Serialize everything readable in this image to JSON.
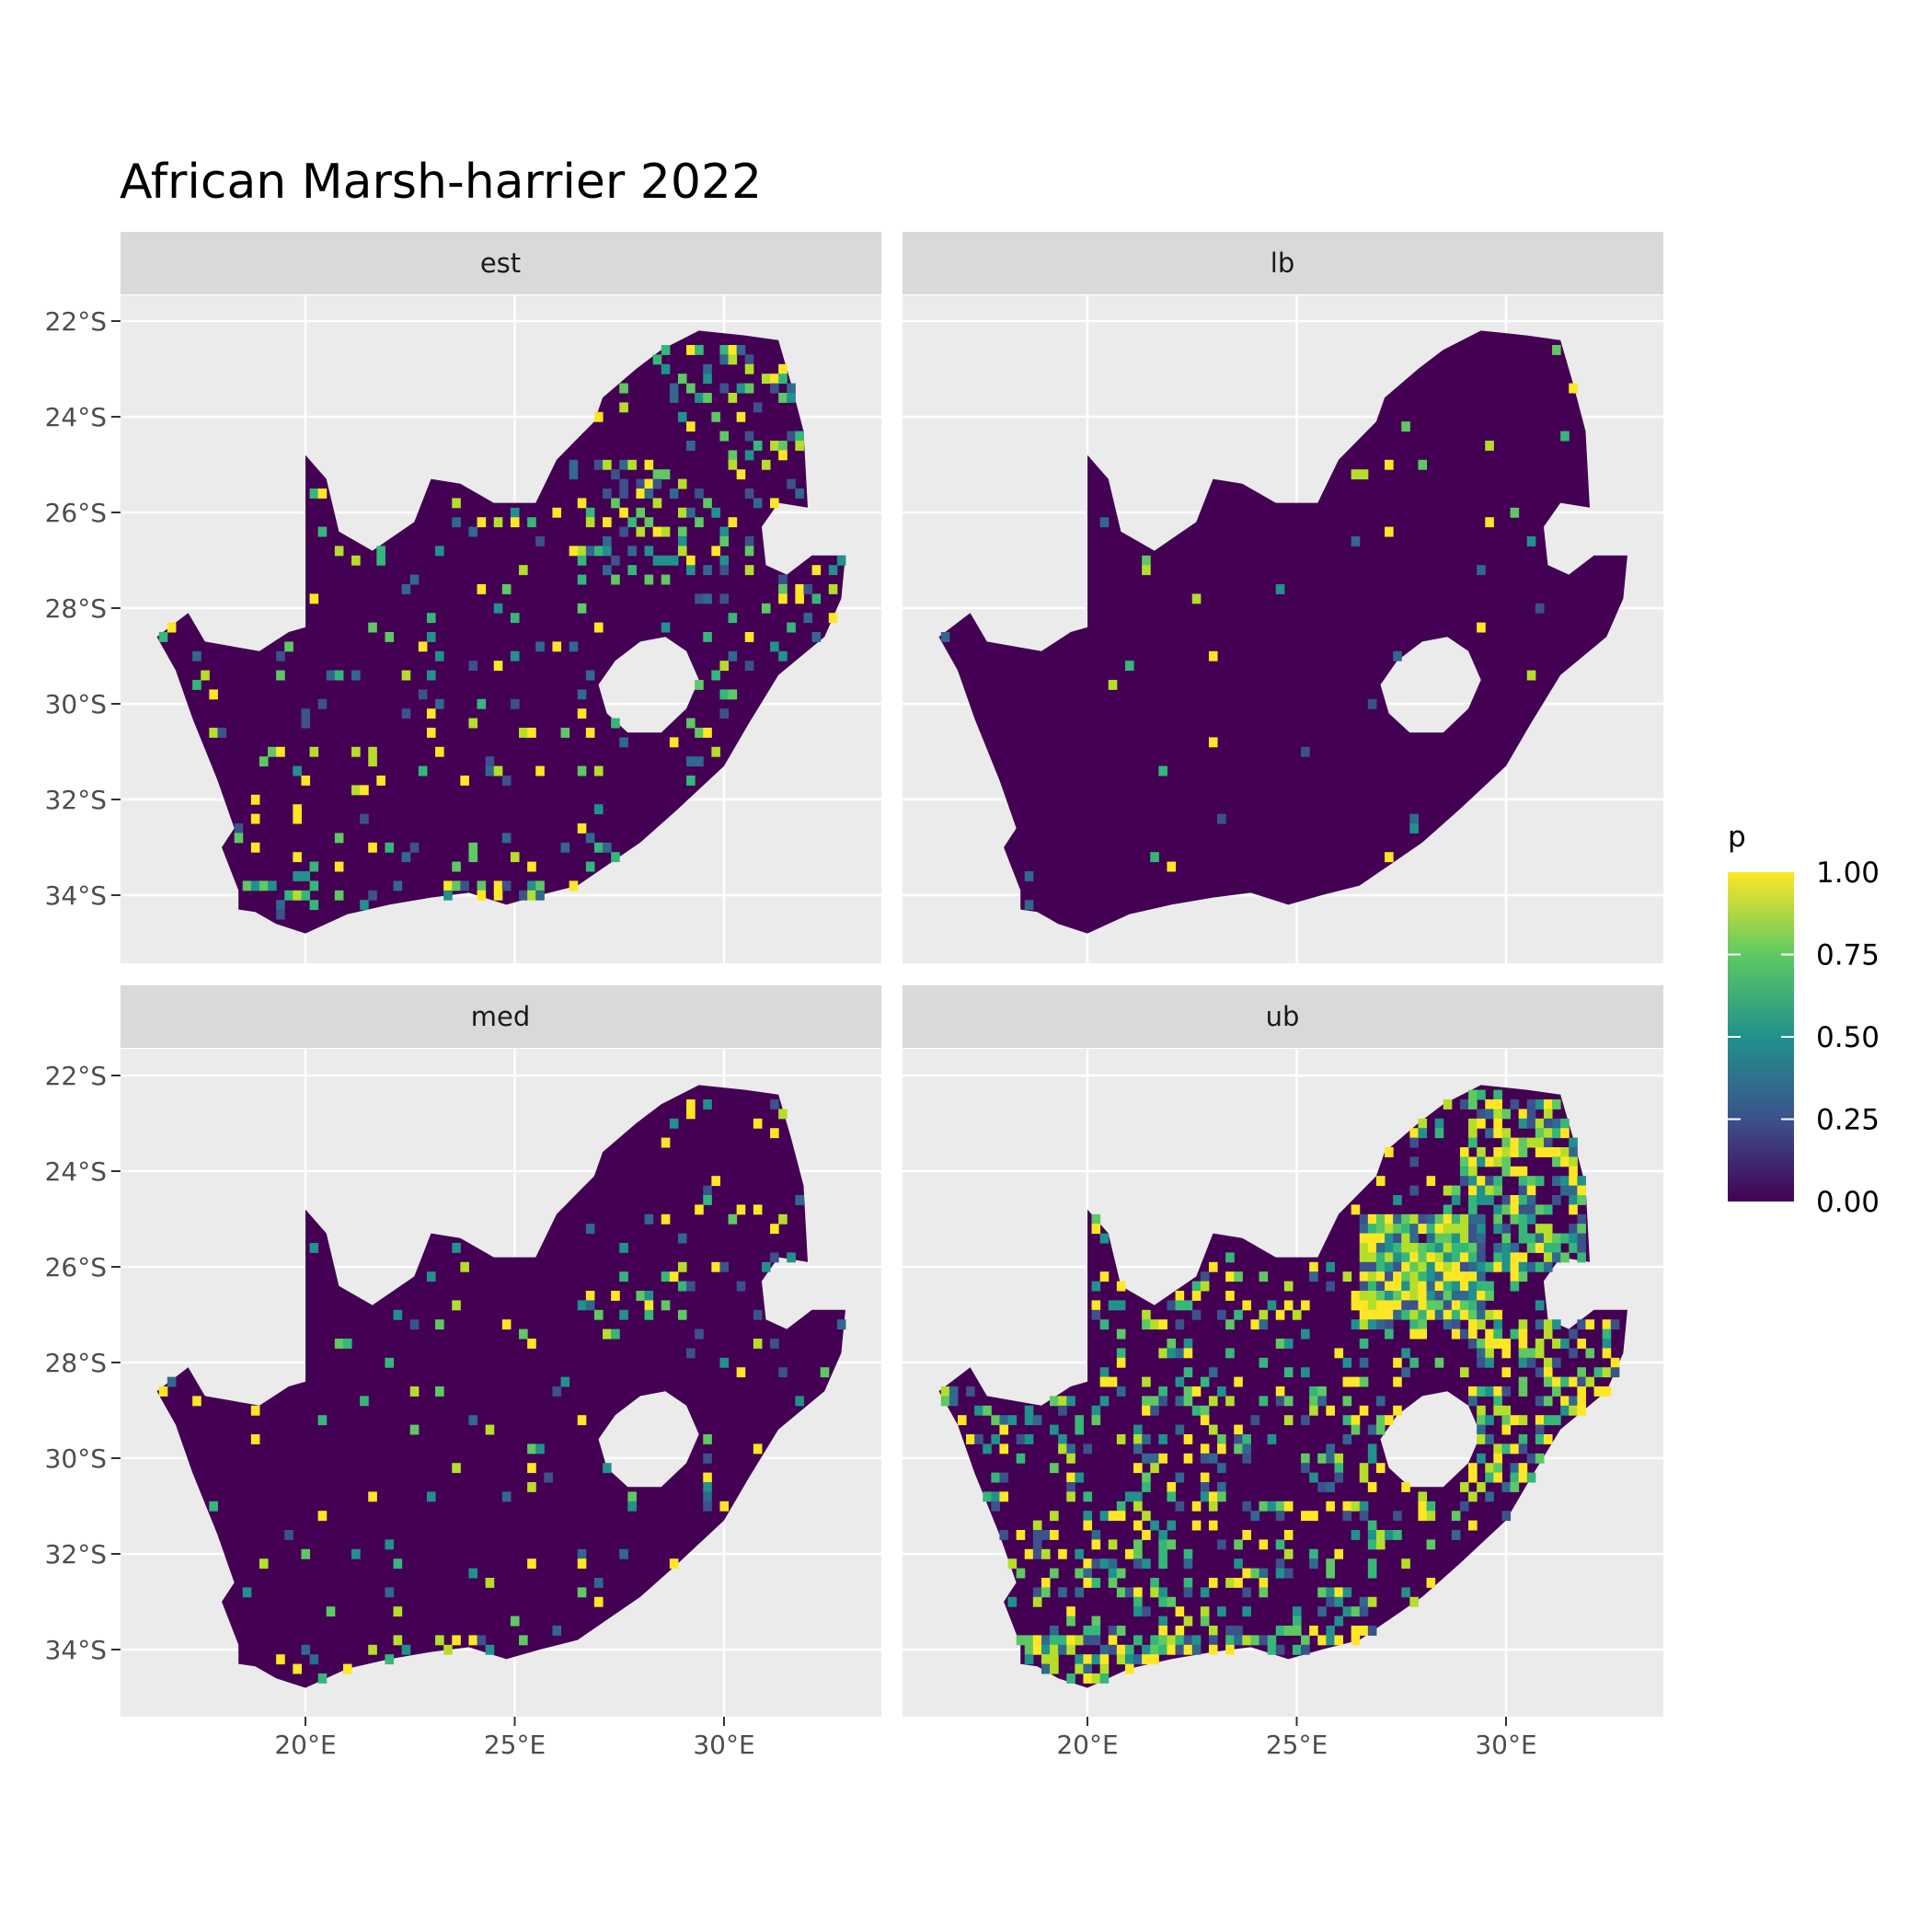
{
  "title": "African Marsh-harrier 2022",
  "panels": [
    {
      "label": "est"
    },
    {
      "label": "lb"
    },
    {
      "label": "med"
    },
    {
      "label": "ub"
    }
  ],
  "axes": {
    "x_ticks": [
      {
        "value": 20,
        "label": "20°E"
      },
      {
        "value": 25,
        "label": "25°E"
      },
      {
        "value": 30,
        "label": "30°E"
      }
    ],
    "y_ticks": [
      {
        "value": -22,
        "label": "22°S"
      },
      {
        "value": -24,
        "label": "24°S"
      },
      {
        "value": -26,
        "label": "26°S"
      },
      {
        "value": -28,
        "label": "28°S"
      },
      {
        "value": -30,
        "label": "30°S"
      },
      {
        "value": -32,
        "label": "32°S"
      },
      {
        "value": -34,
        "label": "34°S"
      }
    ]
  },
  "legend": {
    "title": "p",
    "ticks": [
      {
        "value": 1.0,
        "label": "1.00"
      },
      {
        "value": 0.75,
        "label": "0.75"
      },
      {
        "value": 0.5,
        "label": "0.50"
      },
      {
        "value": 0.25,
        "label": "0.25"
      },
      {
        "value": 0.0,
        "label": "0.00"
      }
    ],
    "colors": [
      "#440154",
      "#3b528b",
      "#21918c",
      "#5ec962",
      "#fde725"
    ]
  },
  "colors": {
    "panel_bg": "#ebebeb",
    "strip_bg": "#d9d9d9",
    "grid": "#ffffff",
    "land": "#440154"
  }
}
